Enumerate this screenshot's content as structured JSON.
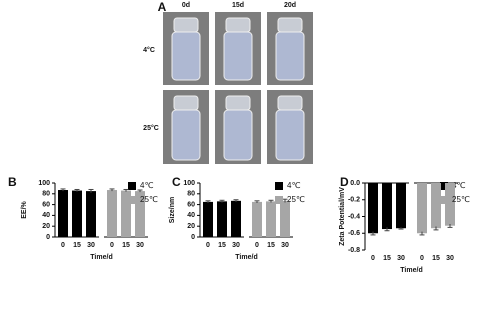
{
  "panel_a": {
    "panel": "A",
    "columns": [
      "0d",
      "15d",
      "20d"
    ],
    "rows": [
      "4°C",
      "25°C"
    ]
  },
  "chart_data": [
    {
      "type": "bar",
      "panel": "B",
      "ylabel": "EE/%",
      "xlabel": "Time/d",
      "categories": [
        "0",
        "15",
        "30"
      ],
      "series": [
        {
          "name": "4℃",
          "color": "#000000",
          "values": [
            87,
            86,
            85
          ],
          "errors": [
            2,
            2,
            3
          ]
        },
        {
          "name": "25℃",
          "color": "#a6a6a6",
          "values": [
            87,
            86,
            85
          ],
          "errors": [
            2,
            2,
            2
          ]
        }
      ],
      "ylim": [
        0,
        100
      ],
      "yticks": [
        0,
        20,
        40,
        60,
        80,
        100
      ]
    },
    {
      "type": "bar",
      "panel": "C",
      "ylabel": "Size/nm",
      "xlabel": "Time/d",
      "categories": [
        "0",
        "15",
        "30"
      ],
      "series": [
        {
          "name": "4℃",
          "color": "#000000",
          "values": [
            65,
            66,
            67
          ],
          "errors": [
            2,
            2,
            2
          ]
        },
        {
          "name": "25℃",
          "color": "#a6a6a6",
          "values": [
            65,
            66,
            67
          ],
          "errors": [
            2,
            2,
            3
          ]
        }
      ],
      "ylim": [
        0,
        100
      ],
      "yticks": [
        0,
        20,
        40,
        60,
        80,
        100
      ]
    },
    {
      "type": "bar",
      "panel": "D",
      "ylabel": "Zeta Potential/mV",
      "xlabel": "Time/d",
      "categories": [
        "0",
        "15",
        "30"
      ],
      "series": [
        {
          "name": "4℃",
          "color": "#000000",
          "values": [
            -0.6,
            -0.55,
            -0.54
          ],
          "errors": [
            0.02,
            0.02,
            0.01
          ]
        },
        {
          "name": "25℃",
          "color": "#a6a6a6",
          "values": [
            -0.6,
            -0.54,
            -0.51
          ],
          "errors": [
            0.02,
            0.02,
            0.02
          ]
        }
      ],
      "ylim": [
        -0.8,
        0
      ],
      "yticks": [
        {
          "value": 0,
          "label": "0.0"
        },
        -0.2,
        -0.4,
        -0.6,
        -0.8
      ]
    }
  ]
}
